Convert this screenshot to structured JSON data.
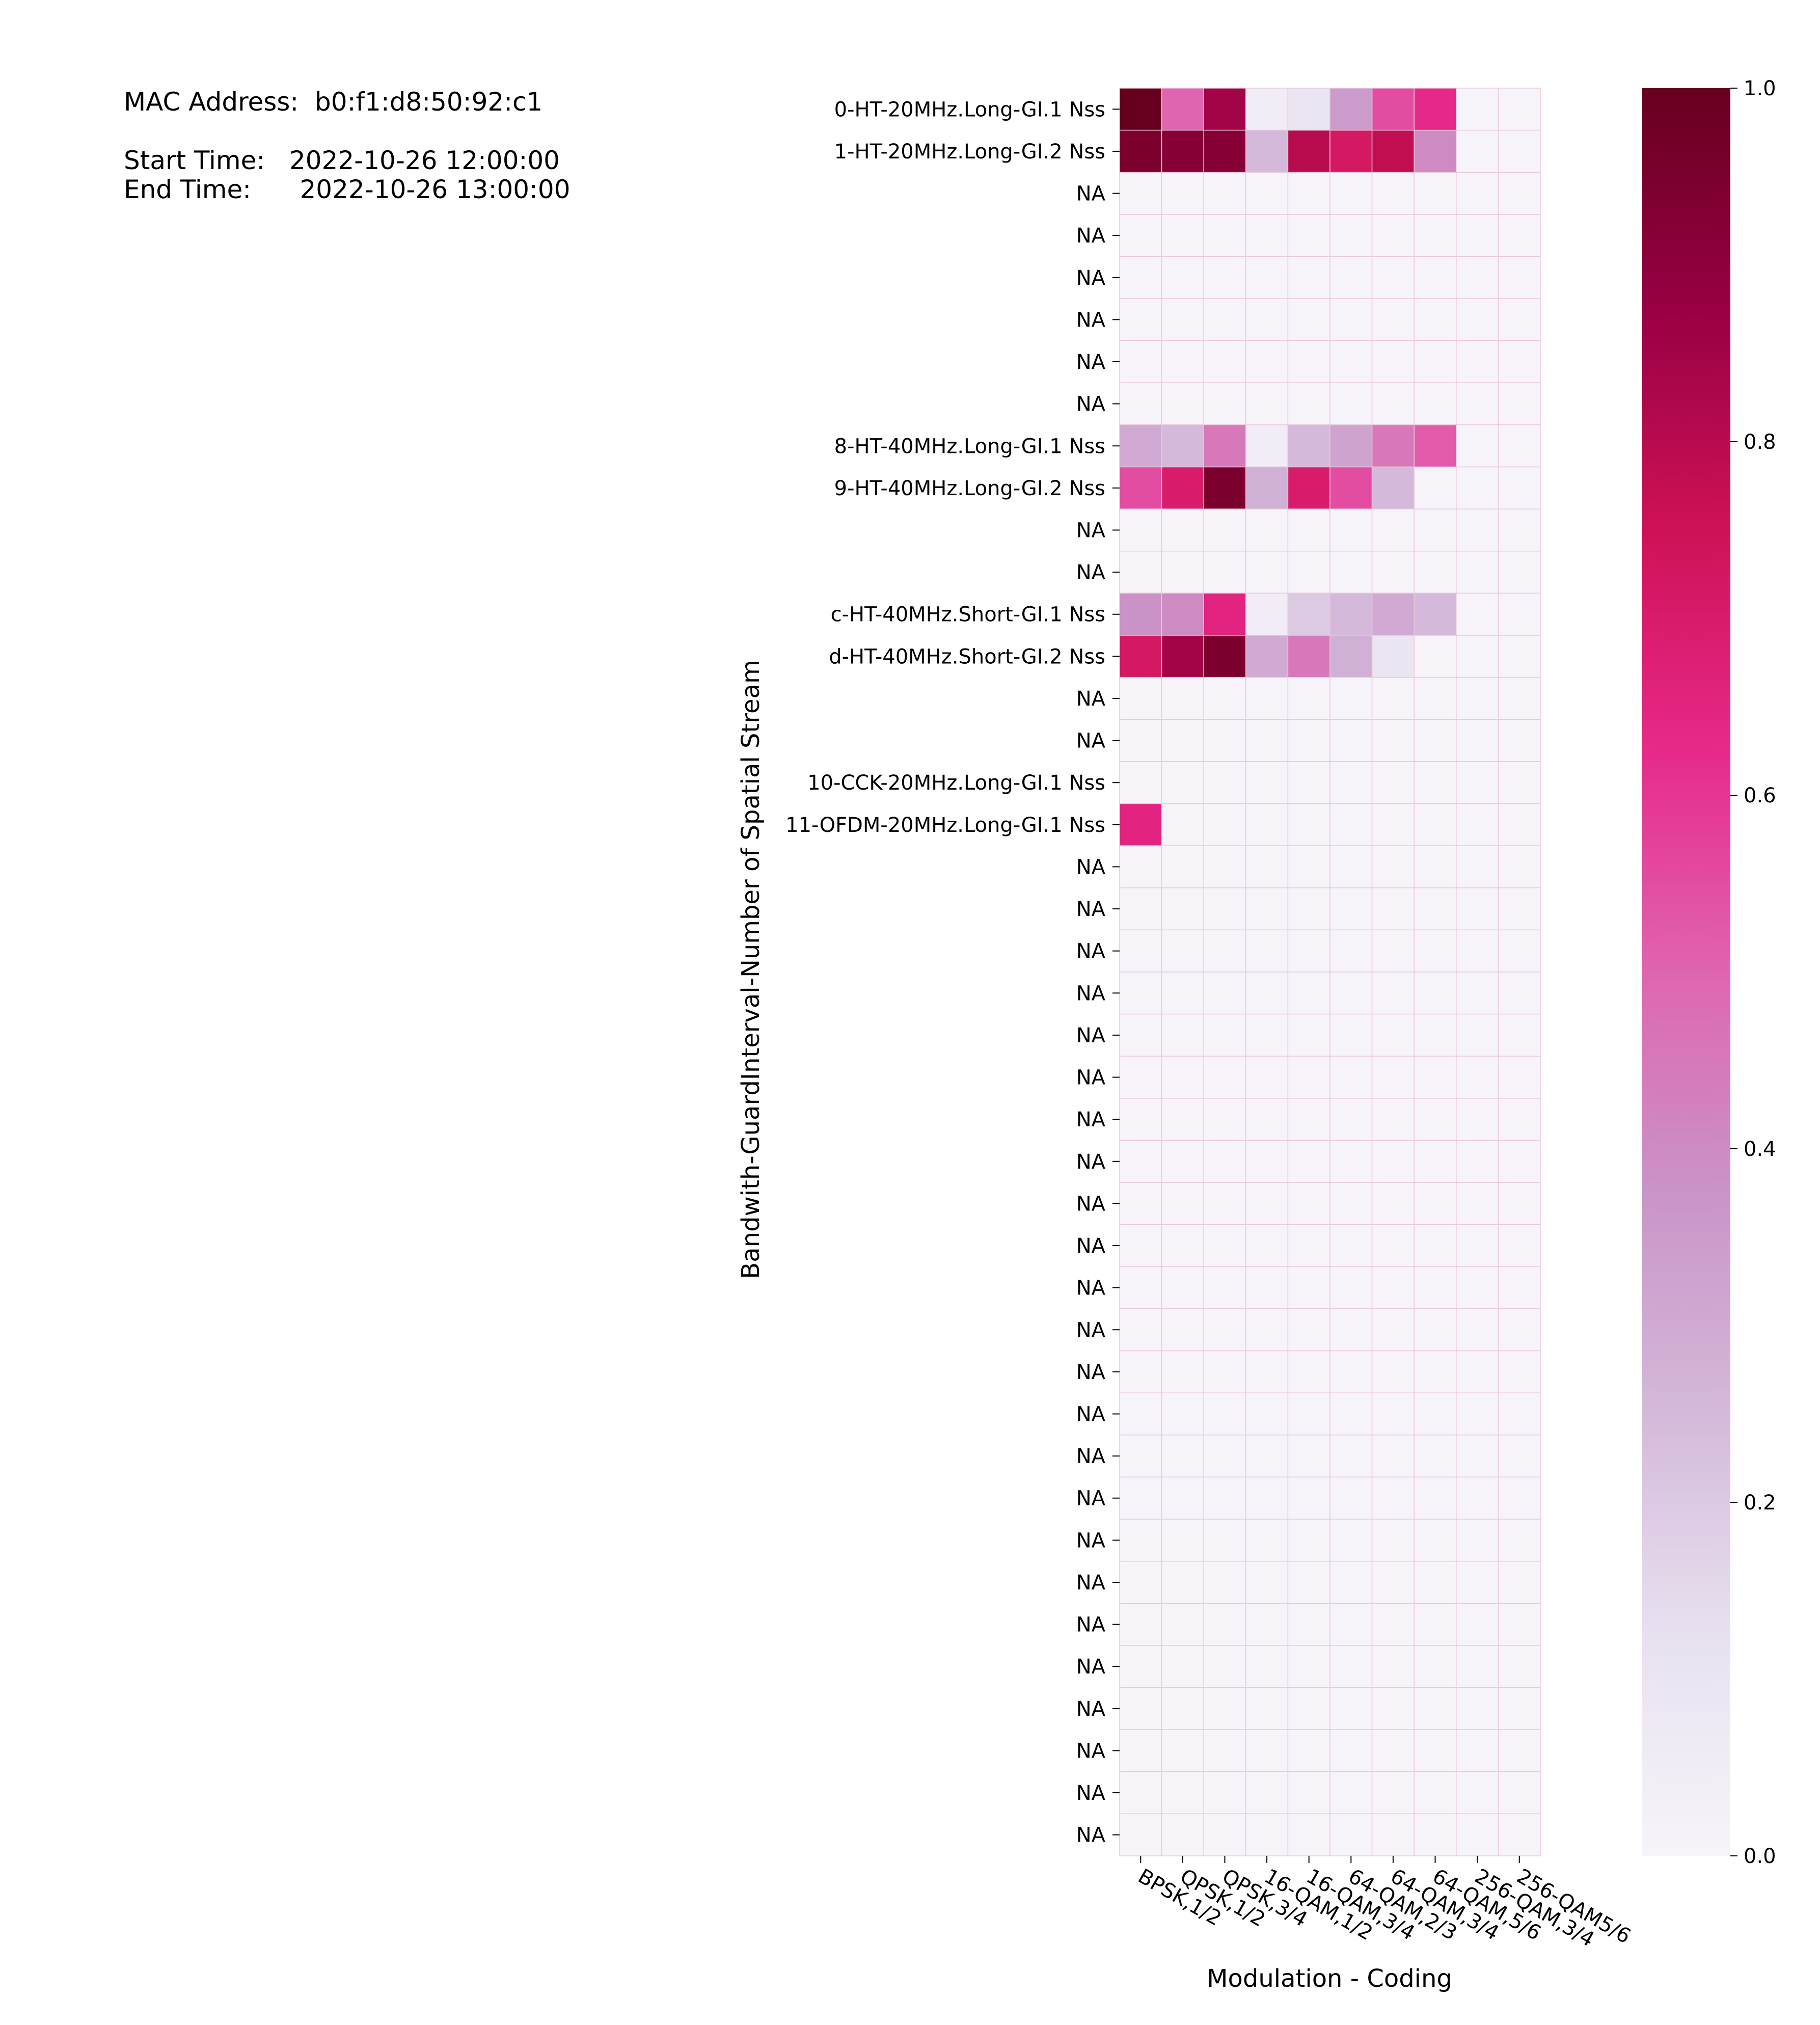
{
  "info": {
    "mac_label": "MAC Address:",
    "mac_value": "b0:f1:d8:50:92:c1",
    "start_label": "Start Time:",
    "start_value": "2022-10-26 12:00:00",
    "end_label": "End Time:",
    "end_value": "2022-10-26 13:00:00"
  },
  "chart_data": {
    "type": "heatmap",
    "xlabel": "Modulation - Coding",
    "ylabel": "Bandwith-GuardInterval-Number of Spatial Stream",
    "x_categories": [
      "BPSK,1/2",
      "QPSK,1/2",
      "QPSK,3/4",
      "16-QAM,1/2",
      "16-QAM,3/4",
      "64-QAM,2/3",
      "64-QAM,3/4",
      "64-QAM,5/6",
      "256-QAM,3/4",
      "256-QAM5/6"
    ],
    "y_categories": [
      "0-HT-20MHz.Long-GI.1 Nss",
      "1-HT-20MHz.Long-GI.2 Nss",
      "NA",
      "NA",
      "NA",
      "NA",
      "NA",
      "NA",
      "8-HT-40MHz.Long-GI.1 Nss",
      "9-HT-40MHz.Long-GI.2 Nss",
      "NA",
      "NA",
      "c-HT-40MHz.Short-GI.1 Nss",
      "d-HT-40MHz.Short-GI.2 Nss",
      "NA",
      "NA",
      "10-CCK-20MHz.Long-GI.1 Nss",
      "11-OFDM-20MHz.Long-GI.1 Nss",
      "NA",
      "NA",
      "NA",
      "NA",
      "NA",
      "NA",
      "NA",
      "NA",
      "NA",
      "NA",
      "NA",
      "NA",
      "NA",
      "NA",
      "NA",
      "NA",
      "NA",
      "NA",
      "NA",
      "NA",
      "NA",
      "NA",
      "NA",
      "NA"
    ],
    "values": [
      [
        1.0,
        0.5,
        0.85,
        0.05,
        0.1,
        0.35,
        0.55,
        0.63,
        0.0,
        0.0
      ],
      [
        0.95,
        0.92,
        0.92,
        0.25,
        0.8,
        0.72,
        0.78,
        0.4,
        0.0,
        0.0
      ],
      [
        0,
        0,
        0,
        0,
        0,
        0,
        0,
        0,
        0,
        0
      ],
      [
        0,
        0,
        0,
        0,
        0,
        0,
        0,
        0,
        0,
        0
      ],
      [
        0,
        0,
        0,
        0,
        0,
        0,
        0,
        0,
        0,
        0
      ],
      [
        0,
        0,
        0,
        0,
        0,
        0,
        0,
        0,
        0,
        0
      ],
      [
        0,
        0,
        0,
        0,
        0,
        0,
        0,
        0,
        0,
        0
      ],
      [
        0,
        0,
        0,
        0,
        0,
        0,
        0,
        0,
        0,
        0
      ],
      [
        0.3,
        0.25,
        0.45,
        0.05,
        0.25,
        0.32,
        0.45,
        0.52,
        0.0,
        0.0
      ],
      [
        0.55,
        0.7,
        0.95,
        0.28,
        0.7,
        0.55,
        0.25,
        0.0,
        0.0,
        0.0
      ],
      [
        0,
        0,
        0,
        0,
        0,
        0,
        0,
        0,
        0,
        0
      ],
      [
        0,
        0,
        0,
        0,
        0,
        0,
        0,
        0,
        0,
        0
      ],
      [
        0.38,
        0.4,
        0.65,
        0.05,
        0.2,
        0.25,
        0.3,
        0.25,
        0.0,
        0.0
      ],
      [
        0.72,
        0.85,
        0.95,
        0.3,
        0.45,
        0.28,
        0.1,
        0.0,
        0.0,
        0.0
      ],
      [
        0,
        0,
        0,
        0,
        0,
        0,
        0,
        0,
        0,
        0
      ],
      [
        0,
        0,
        0,
        0,
        0,
        0,
        0,
        0,
        0,
        0
      ],
      [
        0,
        0,
        0,
        0,
        0,
        0,
        0,
        0,
        0,
        0
      ],
      [
        0.65,
        0,
        0,
        0,
        0,
        0,
        0,
        0,
        0,
        0
      ],
      [
        0,
        0,
        0,
        0,
        0,
        0,
        0,
        0,
        0,
        0
      ],
      [
        0,
        0,
        0,
        0,
        0,
        0,
        0,
        0,
        0,
        0
      ],
      [
        0,
        0,
        0,
        0,
        0,
        0,
        0,
        0,
        0,
        0
      ],
      [
        0,
        0,
        0,
        0,
        0,
        0,
        0,
        0,
        0,
        0
      ],
      [
        0,
        0,
        0,
        0,
        0,
        0,
        0,
        0,
        0,
        0
      ],
      [
        0,
        0,
        0,
        0,
        0,
        0,
        0,
        0,
        0,
        0
      ],
      [
        0,
        0,
        0,
        0,
        0,
        0,
        0,
        0,
        0,
        0
      ],
      [
        0,
        0,
        0,
        0,
        0,
        0,
        0,
        0,
        0,
        0
      ],
      [
        0,
        0,
        0,
        0,
        0,
        0,
        0,
        0,
        0,
        0
      ],
      [
        0,
        0,
        0,
        0,
        0,
        0,
        0,
        0,
        0,
        0
      ],
      [
        0,
        0,
        0,
        0,
        0,
        0,
        0,
        0,
        0,
        0
      ],
      [
        0,
        0,
        0,
        0,
        0,
        0,
        0,
        0,
        0,
        0
      ],
      [
        0,
        0,
        0,
        0,
        0,
        0,
        0,
        0,
        0,
        0
      ],
      [
        0,
        0,
        0,
        0,
        0,
        0,
        0,
        0,
        0,
        0
      ],
      [
        0,
        0,
        0,
        0,
        0,
        0,
        0,
        0,
        0,
        0
      ],
      [
        0,
        0,
        0,
        0,
        0,
        0,
        0,
        0,
        0,
        0
      ],
      [
        0,
        0,
        0,
        0,
        0,
        0,
        0,
        0,
        0,
        0
      ],
      [
        0,
        0,
        0,
        0,
        0,
        0,
        0,
        0,
        0,
        0
      ],
      [
        0,
        0,
        0,
        0,
        0,
        0,
        0,
        0,
        0,
        0
      ],
      [
        0,
        0,
        0,
        0,
        0,
        0,
        0,
        0,
        0,
        0
      ],
      [
        0,
        0,
        0,
        0,
        0,
        0,
        0,
        0,
        0,
        0
      ],
      [
        0,
        0,
        0,
        0,
        0,
        0,
        0,
        0,
        0,
        0
      ],
      [
        0,
        0,
        0,
        0,
        0,
        0,
        0,
        0,
        0,
        0
      ],
      [
        0,
        0,
        0,
        0,
        0,
        0,
        0,
        0,
        0,
        0
      ]
    ],
    "colorbar": {
      "range": [
        0.0,
        1.0
      ],
      "ticks": [
        "0.0",
        "0.2",
        "0.4",
        "0.6",
        "0.8",
        "1.0"
      ],
      "colormap": "PuRd",
      "colors": [
        "#f7f4f9",
        "#e7e1ef",
        "#d4b9da",
        "#c994c7",
        "#df65b0",
        "#e7298a",
        "#ce1256",
        "#980043",
        "#67001f"
      ]
    },
    "grid_line_color": "#e8c8dc"
  }
}
